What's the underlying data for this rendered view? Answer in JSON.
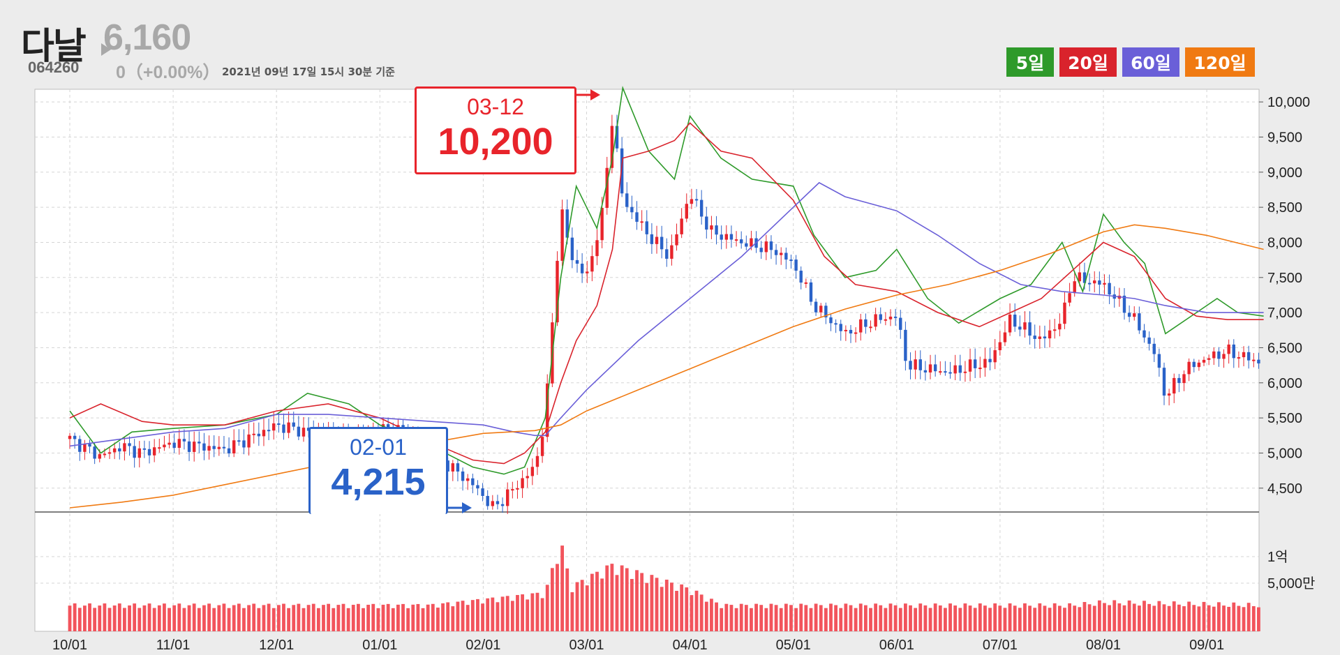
{
  "stock": {
    "name": "다날",
    "price": "6,160",
    "code": "064260",
    "change": "0（+0.00%）",
    "as_of": "2021년 09년 17일 15시 30분 기준"
  },
  "ma_buttons": [
    {
      "label": "5일",
      "color": "#2e9a2a"
    },
    {
      "label": "20일",
      "color": "#d9232c"
    },
    {
      "label": "60일",
      "color": "#6a5fd8"
    },
    {
      "label": "120일",
      "color": "#f07a12"
    }
  ],
  "high_marker": {
    "date": "03-12",
    "value": "10,200"
  },
  "low_marker": {
    "date": "02-01",
    "value": "4,215"
  },
  "colors": {
    "up": "#e8242b",
    "down": "#2a62c8",
    "volume": "#f2545c"
  },
  "chart_data": {
    "type": "candlestick",
    "x_tick_labels": [
      "10/01",
      "11/01",
      "12/01",
      "01/01",
      "02/01",
      "03/01",
      "04/01",
      "05/01",
      "06/01",
      "07/01",
      "08/01",
      "09/01"
    ],
    "price_axis": {
      "ylim": [
        4200,
        10200
      ],
      "ticks": [
        10000,
        9500,
        9000,
        8500,
        8000,
        7500,
        7000,
        6500,
        6000,
        5500,
        5000,
        4500
      ],
      "tick_labels": [
        "10,000",
        "9,500",
        "9,000",
        "8,500",
        "8,000",
        "7,500",
        "7,000",
        "6,500",
        "6,000",
        "5,500",
        "5,000",
        "4,500"
      ]
    },
    "volume_axis": {
      "tick_labels": [
        "1억",
        "5,000만"
      ]
    },
    "grid": true,
    "close_series": [
      {
        "m": 0.0,
        "p": 5200
      },
      {
        "m": 0.3,
        "p": 4950
      },
      {
        "m": 0.5,
        "p": 5100
      },
      {
        "m": 0.7,
        "p": 5000
      },
      {
        "m": 1.0,
        "p": 5150
      },
      {
        "m": 1.5,
        "p": 5050
      },
      {
        "m": 2.0,
        "p": 5400
      },
      {
        "m": 2.3,
        "p": 5300
      },
      {
        "m": 2.7,
        "p": 5200
      },
      {
        "m": 3.0,
        "p": 5350
      },
      {
        "m": 3.3,
        "p": 5300
      },
      {
        "m": 3.6,
        "p": 4900
      },
      {
        "m": 3.9,
        "p": 4550
      },
      {
        "m": 4.1,
        "p": 4215
      },
      {
        "m": 4.3,
        "p": 4500
      },
      {
        "m": 4.5,
        "p": 4800
      },
      {
        "m": 4.6,
        "p": 5500
      },
      {
        "m": 4.75,
        "p": 8500
      },
      {
        "m": 4.85,
        "p": 7800
      },
      {
        "m": 5.0,
        "p": 7500
      },
      {
        "m": 5.15,
        "p": 8400
      },
      {
        "m": 5.25,
        "p": 9800
      },
      {
        "m": 5.35,
        "p": 8600
      },
      {
        "m": 5.6,
        "p": 8100
      },
      {
        "m": 5.8,
        "p": 7800
      },
      {
        "m": 6.0,
        "p": 8700
      },
      {
        "m": 6.2,
        "p": 8150
      },
      {
        "m": 6.5,
        "p": 8000
      },
      {
        "m": 6.8,
        "p": 7900
      },
      {
        "m": 7.0,
        "p": 7700
      },
      {
        "m": 7.2,
        "p": 7100
      },
      {
        "m": 7.5,
        "p": 6700
      },
      {
        "m": 7.8,
        "p": 6900
      },
      {
        "m": 8.0,
        "p": 6950
      },
      {
        "m": 8.1,
        "p": 6250
      },
      {
        "m": 8.5,
        "p": 6150
      },
      {
        "m": 8.9,
        "p": 6300
      },
      {
        "m": 9.1,
        "p": 6900
      },
      {
        "m": 9.4,
        "p": 6600
      },
      {
        "m": 9.6,
        "p": 6900
      },
      {
        "m": 9.7,
        "p": 7500
      },
      {
        "m": 10.0,
        "p": 7400
      },
      {
        "m": 10.3,
        "p": 6900
      },
      {
        "m": 10.5,
        "p": 6400
      },
      {
        "m": 10.6,
        "p": 5800
      },
      {
        "m": 10.8,
        "p": 6200
      },
      {
        "m": 11.0,
        "p": 6350
      },
      {
        "m": 11.2,
        "p": 6450
      },
      {
        "m": 11.5,
        "p": 6300
      },
      {
        "m": 11.55,
        "p": 6160
      }
    ],
    "ma_series": [
      {
        "label": "5일",
        "values": [
          [
            0,
            5600
          ],
          [
            0.3,
            5000
          ],
          [
            0.6,
            5300
          ],
          [
            1.0,
            5350
          ],
          [
            1.5,
            5400
          ],
          [
            2.0,
            5550
          ],
          [
            2.3,
            5850
          ],
          [
            2.7,
            5700
          ],
          [
            3.0,
            5400
          ],
          [
            3.5,
            5100
          ],
          [
            3.9,
            4800
          ],
          [
            4.2,
            4700
          ],
          [
            4.4,
            4800
          ],
          [
            4.6,
            5500
          ],
          [
            4.75,
            7500
          ],
          [
            4.9,
            8800
          ],
          [
            5.1,
            8200
          ],
          [
            5.25,
            9200
          ],
          [
            5.35,
            10200
          ],
          [
            5.6,
            9300
          ],
          [
            5.85,
            8900
          ],
          [
            6.0,
            9800
          ],
          [
            6.3,
            9200
          ],
          [
            6.6,
            8900
          ],
          [
            7.0,
            8800
          ],
          [
            7.2,
            8100
          ],
          [
            7.5,
            7500
          ],
          [
            7.8,
            7600
          ],
          [
            8.0,
            7900
          ],
          [
            8.3,
            7200
          ],
          [
            8.6,
            6850
          ],
          [
            9.0,
            7200
          ],
          [
            9.3,
            7400
          ],
          [
            9.6,
            8000
          ],
          [
            9.8,
            7300
          ],
          [
            10.0,
            8400
          ],
          [
            10.2,
            8000
          ],
          [
            10.4,
            7700
          ],
          [
            10.6,
            6700
          ],
          [
            10.9,
            7000
          ],
          [
            11.1,
            7200
          ],
          [
            11.3,
            7000
          ],
          [
            11.55,
            6950
          ]
        ]
      },
      {
        "label": "20일",
        "values": [
          [
            0,
            5500
          ],
          [
            0.3,
            5700
          ],
          [
            0.7,
            5450
          ],
          [
            1.0,
            5400
          ],
          [
            1.5,
            5400
          ],
          [
            2.0,
            5600
          ],
          [
            2.5,
            5700
          ],
          [
            3.0,
            5500
          ],
          [
            3.5,
            5150
          ],
          [
            3.9,
            4900
          ],
          [
            4.2,
            4850
          ],
          [
            4.4,
            5000
          ],
          [
            4.6,
            5300
          ],
          [
            4.75,
            6000
          ],
          [
            4.9,
            6600
          ],
          [
            5.1,
            7100
          ],
          [
            5.25,
            7900
          ],
          [
            5.35,
            9200
          ],
          [
            5.6,
            9300
          ],
          [
            5.85,
            9450
          ],
          [
            6.0,
            9700
          ],
          [
            6.3,
            9300
          ],
          [
            6.6,
            9200
          ],
          [
            7.0,
            8600
          ],
          [
            7.3,
            7800
          ],
          [
            7.6,
            7400
          ],
          [
            8.0,
            7300
          ],
          [
            8.4,
            7000
          ],
          [
            8.8,
            6800
          ],
          [
            9.1,
            7000
          ],
          [
            9.4,
            7200
          ],
          [
            9.7,
            7600
          ],
          [
            10.0,
            8000
          ],
          [
            10.3,
            7800
          ],
          [
            10.6,
            7200
          ],
          [
            10.9,
            6950
          ],
          [
            11.2,
            6900
          ],
          [
            11.55,
            6900
          ]
        ]
      },
      {
        "label": "60일",
        "values": [
          [
            0,
            5100
          ],
          [
            0.5,
            5200
          ],
          [
            1.0,
            5300
          ],
          [
            1.5,
            5350
          ],
          [
            2.0,
            5550
          ],
          [
            2.5,
            5550
          ],
          [
            3.0,
            5500
          ],
          [
            3.5,
            5450
          ],
          [
            4.0,
            5400
          ],
          [
            4.3,
            5300
          ],
          [
            4.5,
            5250
          ],
          [
            4.6,
            5250
          ],
          [
            4.75,
            5500
          ],
          [
            5.0,
            5900
          ],
          [
            5.5,
            6600
          ],
          [
            6.0,
            7200
          ],
          [
            6.5,
            7800
          ],
          [
            7.0,
            8500
          ],
          [
            7.25,
            8850
          ],
          [
            7.5,
            8650
          ],
          [
            8.0,
            8450
          ],
          [
            8.4,
            8100
          ],
          [
            8.8,
            7700
          ],
          [
            9.2,
            7400
          ],
          [
            9.6,
            7300
          ],
          [
            10.0,
            7250
          ],
          [
            10.3,
            7200
          ],
          [
            10.6,
            7100
          ],
          [
            11.0,
            7000
          ],
          [
            11.55,
            7000
          ]
        ]
      },
      {
        "label": "120일",
        "values": [
          [
            0,
            4220
          ],
          [
            0.5,
            4300
          ],
          [
            1.0,
            4400
          ],
          [
            1.5,
            4550
          ],
          [
            2.0,
            4700
          ],
          [
            2.5,
            4850
          ],
          [
            3.0,
            5050
          ],
          [
            3.5,
            5150
          ],
          [
            4.0,
            5280
          ],
          [
            4.5,
            5320
          ],
          [
            4.75,
            5400
          ],
          [
            5.0,
            5600
          ],
          [
            5.5,
            5900
          ],
          [
            6.0,
            6200
          ],
          [
            6.5,
            6500
          ],
          [
            7.0,
            6800
          ],
          [
            7.5,
            7050
          ],
          [
            8.0,
            7250
          ],
          [
            8.5,
            7400
          ],
          [
            9.0,
            7600
          ],
          [
            9.5,
            7850
          ],
          [
            10.0,
            8150
          ],
          [
            10.3,
            8250
          ],
          [
            10.6,
            8200
          ],
          [
            11.0,
            8100
          ],
          [
            11.55,
            7900
          ]
        ]
      }
    ],
    "volume_series": [
      {
        "m": 0.0,
        "v": 22
      },
      {
        "m": 2.0,
        "v": 22
      },
      {
        "m": 3.5,
        "v": 22
      },
      {
        "m": 4.6,
        "v": 34
      },
      {
        "m": 4.75,
        "v": 85
      },
      {
        "m": 4.85,
        "v": 40
      },
      {
        "m": 5.25,
        "v": 62
      },
      {
        "m": 6.0,
        "v": 38
      },
      {
        "m": 6.3,
        "v": 22
      },
      {
        "m": 9.7,
        "v": 22
      },
      {
        "m": 10.0,
        "v": 25
      },
      {
        "m": 11.55,
        "v": 22
      }
    ]
  }
}
